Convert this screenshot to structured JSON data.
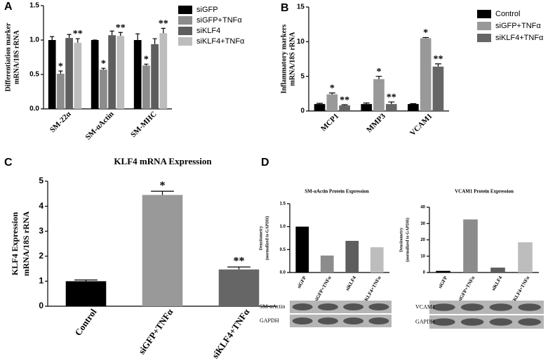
{
  "chart_data": [
    {
      "type": "bar",
      "panel": "A",
      "ylabel": [
        "Differentiation marker",
        "mRNA/18S rRNA"
      ],
      "categories": [
        "SM-22α",
        "SM-αActin",
        "SM-MHC"
      ],
      "series": [
        {
          "name": "siGFP",
          "color": "#000000",
          "values": [
            1.0,
            1.0,
            1.0
          ],
          "errors": [
            0.05,
            0.0,
            0.09
          ]
        },
        {
          "name": "siGFP+TNFα",
          "color": "#8c8c8c",
          "values": [
            0.51,
            0.57,
            0.63
          ],
          "errors": [
            0.04,
            0.02,
            0.02
          ],
          "annotations": [
            "*",
            "*",
            "*"
          ]
        },
        {
          "name": "siKLF4",
          "color": "#5e5e5e",
          "values": [
            1.03,
            1.07,
            0.94
          ],
          "errors": [
            0.05,
            0.06,
            0.08
          ]
        },
        {
          "name": "siKLF4+TNFα",
          "color": "#bdbdbd",
          "values": [
            0.96,
            1.06,
            1.1
          ],
          "errors": [
            0.06,
            0.05,
            0.07
          ],
          "annotations": [
            "**",
            "**",
            "**"
          ]
        }
      ],
      "ylim": [
        0,
        1.5
      ],
      "yticks": [
        {
          "value": 0,
          "label": "0.0"
        },
        0.5,
        {
          "value": 1,
          "label": "1.0"
        },
        1.5
      ]
    },
    {
      "type": "bar",
      "panel": "B",
      "ylabel": [
        "Inflammatory markers",
        "mRNA/18S rRNA"
      ],
      "categories": [
        "MCP1",
        "MMP3",
        "VCAM1"
      ],
      "series": [
        {
          "name": "Control",
          "color": "#000000",
          "values": [
            1.0,
            1.0,
            1.0
          ],
          "errors": [
            0.1,
            0.15,
            0.05
          ]
        },
        {
          "name": "siGFP+TNFα",
          "color": "#999999",
          "values": [
            2.4,
            4.6,
            10.5
          ],
          "errors": [
            0.2,
            0.4,
            0.1
          ],
          "annotations": [
            "*",
            "*",
            "*"
          ]
        },
        {
          "name": "siKLF4+TNFα",
          "color": "#666666",
          "values": [
            0.8,
            1.0,
            6.4
          ],
          "errors": [
            0.1,
            0.3,
            0.4
          ],
          "annotations": [
            "**",
            "**",
            "**"
          ]
        }
      ],
      "ylim": [
        0,
        15
      ],
      "yticks": [
        0,
        5,
        10,
        15
      ]
    },
    {
      "type": "bar",
      "panel": "C",
      "title": "KLF4  mRNA Expression",
      "ylabel": [
        "KLF4 Expression",
        "mRNA/18S rRNA"
      ],
      "categories": [
        "Control",
        "siGFP+TNFα",
        "siKLF4+TNFα"
      ],
      "values": [
        1.0,
        4.45,
        1.47
      ],
      "errors": [
        0.05,
        0.15,
        0.1
      ],
      "annotations": [
        null,
        "*",
        "**"
      ],
      "colors": [
        "#000000",
        "#999999",
        "#666666"
      ],
      "ylim": [
        0,
        5
      ],
      "yticks": [
        0,
        1,
        2,
        3,
        4,
        5
      ]
    },
    {
      "type": "bar",
      "panel": "D",
      "title": "SM-αActin Protein Expression",
      "ylabel": [
        "Densitometry",
        "(normalized to GAPDH)"
      ],
      "categories": [
        "siGFP",
        "siGFP+TNFα",
        "siKLF4",
        "siKLF4+TNFα"
      ],
      "values": [
        1.0,
        0.37,
        0.69,
        0.55
      ],
      "colors": [
        "#000000",
        "#8c8c8c",
        "#5e5e5e",
        "#bdbdbd"
      ],
      "ylim": [
        0,
        1.5
      ],
      "yticks": [
        {
          "value": 0,
          "label": "0.0"
        },
        0.5,
        {
          "value": 1,
          "label": "1.0"
        },
        1.5
      ],
      "blot_labels": [
        "SM-αActin",
        "GAPDH"
      ]
    },
    {
      "type": "bar",
      "title": "VCAM1 Protein Expression",
      "ylabel": [
        "Densitometry",
        "(normalized to GAPDH)"
      ],
      "categories": [
        "siGFP",
        "siGFP+TNFα",
        "siKLF4",
        "siKLF4+TNFα"
      ],
      "values": [
        1,
        32.5,
        3,
        18.5
      ],
      "colors": [
        "#000000",
        "#8c8c8c",
        "#5e5e5e",
        "#bdbdbd"
      ],
      "ylim": [
        0,
        40
      ],
      "yticks": [
        0,
        10,
        20,
        30,
        40
      ],
      "blot_labels": [
        "VCAM1",
        "GAPDH"
      ]
    }
  ]
}
